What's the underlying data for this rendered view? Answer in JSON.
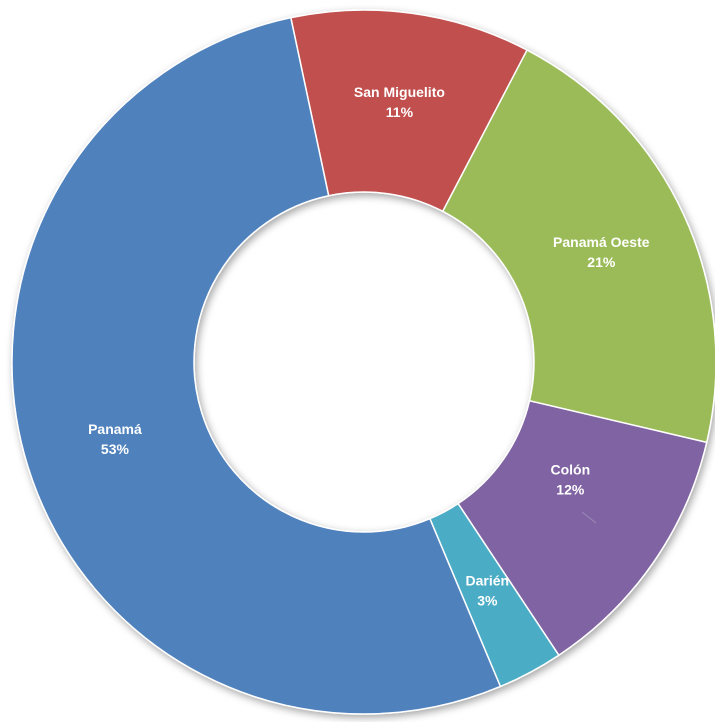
{
  "chart_data": {
    "type": "donut",
    "categories": [
      "San Miguelito",
      "Panamá Oeste",
      "Colón",
      "Darién",
      "Panamá"
    ],
    "values": [
      11,
      21,
      12,
      3,
      53
    ],
    "value_labels": [
      "11%",
      "21%",
      "12%",
      "3%",
      "53%"
    ],
    "colors": [
      "#c0504d",
      "#9bbb59",
      "#8064a2",
      "#4bacc6",
      "#4f81bd"
    ]
  }
}
